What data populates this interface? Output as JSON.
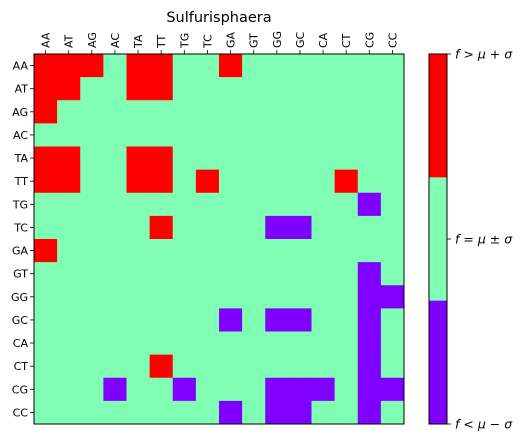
{
  "chart_data": {
    "type": "heatmap",
    "title": "Sulfurisphaera",
    "xlabel": "",
    "ylabel": "",
    "x_labels": [
      "AA",
      "AT",
      "AG",
      "AC",
      "TA",
      "TT",
      "TG",
      "TC",
      "GA",
      "GT",
      "GG",
      "GC",
      "CA",
      "CT",
      "CG",
      "CC"
    ],
    "y_labels": [
      "AA",
      "AT",
      "AG",
      "AC",
      "TA",
      "TT",
      "TG",
      "TC",
      "GA",
      "GT",
      "GG",
      "GC",
      "CA",
      "CT",
      "CG",
      "CC"
    ],
    "x_ticks_position": "top",
    "x_tick_rotation": 90,
    "levels": [
      -1,
      0,
      1
    ],
    "colors": {
      "high": "#ff0000",
      "mid": "#80ffb4",
      "low": "#8000ff",
      "outline": "#000000"
    },
    "colorbar": {
      "labels": [
        "f < μ − σ",
        "f = μ ± σ",
        "f > μ + σ"
      ],
      "label_parts": {
        "lhs": "f",
        "low_rel": "<",
        "mid_rel": "=",
        "high_rel": ">",
        "mu": "μ",
        "sigma": "σ",
        "minus": "−",
        "plus": "+",
        "pm": "±"
      }
    },
    "matrix": [
      [
        1,
        1,
        1,
        0,
        1,
        1,
        0,
        0,
        1,
        0,
        0,
        0,
        0,
        0,
        0,
        0
      ],
      [
        1,
        1,
        0,
        0,
        1,
        1,
        0,
        0,
        0,
        0,
        0,
        0,
        0,
        0,
        0,
        0
      ],
      [
        1,
        0,
        0,
        0,
        0,
        0,
        0,
        0,
        0,
        0,
        0,
        0,
        0,
        0,
        0,
        0
      ],
      [
        0,
        0,
        0,
        0,
        0,
        0,
        0,
        0,
        0,
        0,
        0,
        0,
        0,
        0,
        0,
        0
      ],
      [
        1,
        1,
        0,
        0,
        1,
        1,
        0,
        0,
        0,
        0,
        0,
        0,
        0,
        0,
        0,
        0
      ],
      [
        1,
        1,
        0,
        0,
        1,
        1,
        0,
        1,
        0,
        0,
        0,
        0,
        0,
        1,
        0,
        0
      ],
      [
        0,
        0,
        0,
        0,
        0,
        0,
        0,
        0,
        0,
        0,
        0,
        0,
        0,
        0,
        -1,
        0
      ],
      [
        0,
        0,
        0,
        0,
        0,
        1,
        0,
        0,
        0,
        0,
        -1,
        -1,
        0,
        0,
        0,
        0
      ],
      [
        1,
        0,
        0,
        0,
        0,
        0,
        0,
        0,
        0,
        0,
        0,
        0,
        0,
        0,
        0,
        0
      ],
      [
        0,
        0,
        0,
        0,
        0,
        0,
        0,
        0,
        0,
        0,
        0,
        0,
        0,
        0,
        -1,
        0
      ],
      [
        0,
        0,
        0,
        0,
        0,
        0,
        0,
        0,
        0,
        0,
        0,
        0,
        0,
        0,
        -1,
        -1
      ],
      [
        0,
        0,
        0,
        0,
        0,
        0,
        0,
        0,
        -1,
        0,
        -1,
        -1,
        0,
        0,
        -1,
        0
      ],
      [
        0,
        0,
        0,
        0,
        0,
        0,
        0,
        0,
        0,
        0,
        0,
        0,
        0,
        0,
        -1,
        0
      ],
      [
        0,
        0,
        0,
        0,
        0,
        1,
        0,
        0,
        0,
        0,
        0,
        0,
        0,
        0,
        -1,
        0
      ],
      [
        0,
        0,
        0,
        -1,
        0,
        0,
        -1,
        0,
        0,
        0,
        -1,
        -1,
        -1,
        0,
        -1,
        -1
      ],
      [
        0,
        0,
        0,
        0,
        0,
        0,
        0,
        0,
        -1,
        0,
        -1,
        -1,
        0,
        0,
        -1,
        0
      ]
    ]
  }
}
